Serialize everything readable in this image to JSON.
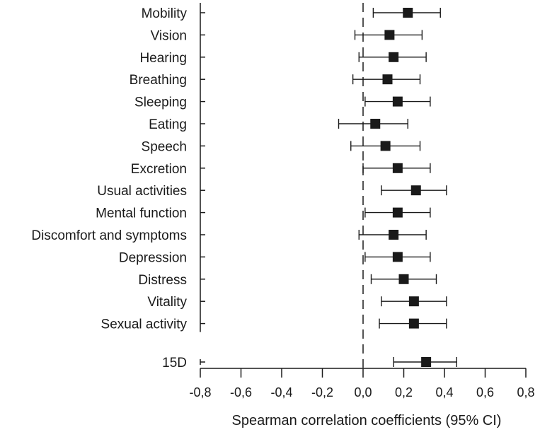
{
  "chart_data": {
    "type": "forest",
    "xlabel": "Spearman correlation coefficients (95% CI)",
    "xlim": [
      -0.8,
      0.8
    ],
    "xticks": [
      -0.8,
      -0.6,
      -0.4,
      -0.2,
      0.0,
      0.2,
      0.4,
      0.6,
      0.8
    ],
    "xtick_labels": [
      "-0,8",
      "-0,6",
      "-0,4",
      "-0,2",
      "0,0",
      "0,2",
      "0,4",
      "0,6",
      "0,8"
    ],
    "reference_line": 0.0,
    "grid": false,
    "rows": [
      {
        "label": "Mobility",
        "estimate": 0.22,
        "lower": 0.05,
        "upper": 0.38
      },
      {
        "label": "Vision",
        "estimate": 0.13,
        "lower": -0.04,
        "upper": 0.29
      },
      {
        "label": "Hearing",
        "estimate": 0.15,
        "lower": -0.02,
        "upper": 0.31
      },
      {
        "label": "Breathing",
        "estimate": 0.12,
        "lower": -0.05,
        "upper": 0.28
      },
      {
        "label": "Sleeping",
        "estimate": 0.17,
        "lower": 0.01,
        "upper": 0.33
      },
      {
        "label": "Eating",
        "estimate": 0.06,
        "lower": -0.12,
        "upper": 0.22
      },
      {
        "label": "Speech",
        "estimate": 0.11,
        "lower": -0.06,
        "upper": 0.28
      },
      {
        "label": "Excretion",
        "estimate": 0.17,
        "lower": 0.0,
        "upper": 0.33
      },
      {
        "label": "Usual activities",
        "estimate": 0.26,
        "lower": 0.09,
        "upper": 0.41
      },
      {
        "label": "Mental function",
        "estimate": 0.17,
        "lower": 0.01,
        "upper": 0.33
      },
      {
        "label": "Discomfort and symptoms",
        "estimate": 0.15,
        "lower": -0.02,
        "upper": 0.31
      },
      {
        "label": "Depression",
        "estimate": 0.17,
        "lower": 0.01,
        "upper": 0.33
      },
      {
        "label": "Distress",
        "estimate": 0.2,
        "lower": 0.04,
        "upper": 0.36
      },
      {
        "label": "Vitality",
        "estimate": 0.25,
        "lower": 0.09,
        "upper": 0.41
      },
      {
        "label": "Sexual activity",
        "estimate": 0.25,
        "lower": 0.08,
        "upper": 0.41
      }
    ],
    "summary": {
      "label": "15D",
      "estimate": 0.31,
      "lower": 0.15,
      "upper": 0.46
    }
  }
}
